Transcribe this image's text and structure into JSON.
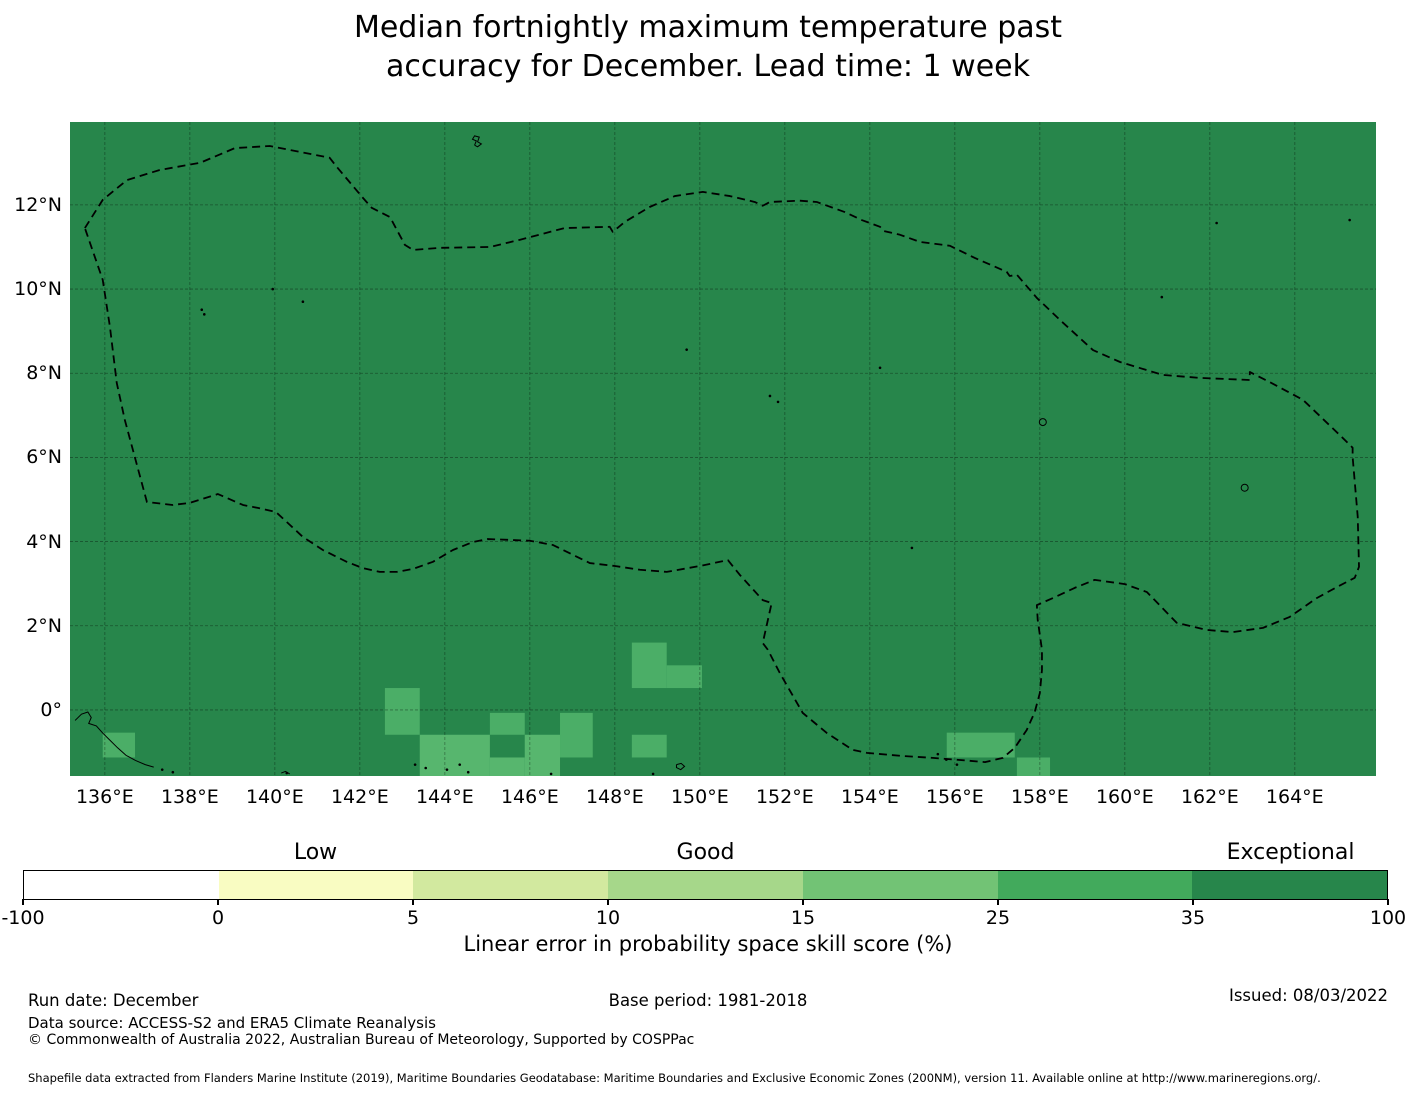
{
  "title": {
    "line1": "Median fortnightly maximum temperature past",
    "line2": "accuracy for December. Lead time: 1 week"
  },
  "map": {
    "type": "skill-score-choropleth",
    "base_color": "#27864b",
    "grid_color": "rgba(0,0,0,0.38)",
    "boundary_color": "#000000",
    "extent": {
      "lon_min": 135.18,
      "lon_max": 165.91,
      "lat_min": -1.57,
      "lat_max": 13.97
    },
    "lat_ticks": [
      {
        "value": 12,
        "label": "12°N"
      },
      {
        "value": 10,
        "label": "10°N"
      },
      {
        "value": 8,
        "label": "8°N"
      },
      {
        "value": 6,
        "label": "6°N"
      },
      {
        "value": 4,
        "label": "4°N"
      },
      {
        "value": 2,
        "label": "2°N"
      },
      {
        "value": 0,
        "label": "0°"
      }
    ],
    "lon_ticks": [
      {
        "value": 136,
        "label": "136°E"
      },
      {
        "value": 138,
        "label": "138°E"
      },
      {
        "value": 140,
        "label": "140°E"
      },
      {
        "value": 142,
        "label": "142°E"
      },
      {
        "value": 144,
        "label": "144°E"
      },
      {
        "value": 146,
        "label": "146°E"
      },
      {
        "value": 148,
        "label": "148°E"
      },
      {
        "value": 150,
        "label": "150°E"
      },
      {
        "value": 152,
        "label": "152°E"
      },
      {
        "value": 154,
        "label": "154°E"
      },
      {
        "value": 156,
        "label": "156°E"
      },
      {
        "value": 158,
        "label": "158°E"
      },
      {
        "value": 160,
        "label": "160°E"
      },
      {
        "value": 162,
        "label": "162°E"
      },
      {
        "value": 164,
        "label": "164°E"
      }
    ],
    "eez_boundary": [
      [
        135.53,
        11.45
      ],
      [
        135.95,
        12.12
      ],
      [
        136.52,
        12.59
      ],
      [
        137.29,
        12.83
      ],
      [
        138.24,
        13.0
      ],
      [
        139.06,
        13.35
      ],
      [
        139.88,
        13.4
      ],
      [
        141.29,
        13.12
      ],
      [
        141.46,
        12.9
      ],
      [
        142.07,
        12.17
      ],
      [
        142.28,
        11.93
      ],
      [
        142.71,
        11.71
      ],
      [
        143.06,
        11.05
      ],
      [
        143.25,
        10.93
      ],
      [
        143.88,
        10.98
      ],
      [
        145.06,
        11.0
      ],
      [
        145.76,
        11.17
      ],
      [
        146.82,
        11.45
      ],
      [
        147.88,
        11.48
      ],
      [
        147.95,
        11.36
      ],
      [
        148.24,
        11.6
      ],
      [
        148.82,
        11.95
      ],
      [
        149.41,
        12.21
      ],
      [
        150.07,
        12.31
      ],
      [
        150.71,
        12.21
      ],
      [
        151.29,
        12.07
      ],
      [
        151.48,
        11.98
      ],
      [
        151.65,
        12.07
      ],
      [
        152.35,
        12.1
      ],
      [
        152.75,
        12.07
      ],
      [
        153.41,
        11.83
      ],
      [
        153.81,
        11.64
      ],
      [
        154.24,
        11.48
      ],
      [
        154.33,
        11.38
      ],
      [
        154.71,
        11.29
      ],
      [
        155.18,
        11.12
      ],
      [
        155.88,
        11.03
      ],
      [
        156.47,
        10.74
      ],
      [
        157.22,
        10.41
      ],
      [
        157.29,
        10.31
      ],
      [
        157.46,
        10.34
      ],
      [
        157.93,
        9.79
      ],
      [
        158.47,
        9.27
      ],
      [
        159.25,
        8.55
      ],
      [
        159.88,
        8.27
      ],
      [
        160.89,
        7.96
      ],
      [
        161.76,
        7.89
      ],
      [
        162.94,
        7.84
      ],
      [
        162.94,
        8.03
      ],
      [
        163.41,
        7.79
      ],
      [
        164.19,
        7.37
      ],
      [
        165.13,
        6.46
      ],
      [
        165.36,
        6.23
      ],
      [
        165.36,
        6.01
      ],
      [
        165.48,
        4.59
      ],
      [
        165.51,
        3.4
      ],
      [
        165.41,
        3.14
      ],
      [
        164.99,
        2.92
      ],
      [
        164.52,
        2.66
      ],
      [
        163.88,
        2.21
      ],
      [
        163.25,
        1.95
      ],
      [
        162.54,
        1.85
      ],
      [
        161.93,
        1.9
      ],
      [
        161.22,
        2.07
      ],
      [
        160.52,
        2.8
      ],
      [
        160.0,
        2.99
      ],
      [
        159.29,
        3.09
      ],
      [
        158.82,
        2.9
      ],
      [
        158.31,
        2.66
      ],
      [
        157.93,
        2.49
      ],
      [
        157.95,
        2.14
      ],
      [
        158.05,
        1.43
      ],
      [
        158.05,
        0.95
      ],
      [
        158.0,
        0.4
      ],
      [
        157.88,
        -0.05
      ],
      [
        157.69,
        -0.48
      ],
      [
        157.41,
        -0.9
      ],
      [
        157.13,
        -1.14
      ],
      [
        156.71,
        -1.24
      ],
      [
        156.12,
        -1.19
      ],
      [
        155.48,
        -1.14
      ],
      [
        154.71,
        -1.09
      ],
      [
        153.93,
        -1.02
      ],
      [
        153.6,
        -0.95
      ],
      [
        152.99,
        -0.55
      ],
      [
        152.42,
        -0.07
      ],
      [
        151.88,
        0.88
      ],
      [
        151.6,
        1.43
      ],
      [
        151.48,
        1.59
      ],
      [
        151.69,
        2.54
      ],
      [
        151.48,
        2.61
      ],
      [
        150.94,
        3.21
      ],
      [
        150.66,
        3.56
      ],
      [
        150.0,
        3.42
      ],
      [
        149.22,
        3.28
      ],
      [
        148.59,
        3.33
      ],
      [
        148.0,
        3.42
      ],
      [
        147.41,
        3.49
      ],
      [
        146.54,
        3.92
      ],
      [
        146.0,
        4.02
      ],
      [
        145.53,
        4.04
      ],
      [
        145.01,
        4.06
      ],
      [
        144.66,
        3.99
      ],
      [
        144.19,
        3.8
      ],
      [
        143.72,
        3.52
      ],
      [
        143.25,
        3.35
      ],
      [
        142.87,
        3.28
      ],
      [
        142.47,
        3.28
      ],
      [
        142.07,
        3.37
      ],
      [
        141.69,
        3.52
      ],
      [
        141.13,
        3.8
      ],
      [
        140.66,
        4.11
      ],
      [
        140.35,
        4.4
      ],
      [
        140.05,
        4.68
      ],
      [
        140.0,
        4.71
      ],
      [
        139.6,
        4.8
      ],
      [
        139.25,
        4.87
      ],
      [
        138.66,
        5.13
      ],
      [
        138.0,
        4.92
      ],
      [
        137.6,
        4.87
      ],
      [
        136.99,
        4.94
      ],
      [
        136.47,
        6.89
      ],
      [
        136.28,
        7.77
      ],
      [
        136.12,
        9.1
      ],
      [
        135.95,
        10.22
      ]
    ],
    "highlight_cells": [
      {
        "lon": [
          142.59,
          143.41
        ],
        "lat": [
          -0.59,
          0.52
        ],
        "color": "#4bae67"
      },
      {
        "lon": [
          143.41,
          145.06
        ],
        "lat": [
          -1.57,
          -0.59
        ],
        "color": "#57b66e"
      },
      {
        "lon": [
          145.06,
          145.88
        ],
        "lat": [
          -0.59,
          -0.07
        ],
        "color": "#4bae67"
      },
      {
        "lon": [
          145.06,
          145.88
        ],
        "lat": [
          -1.57,
          -1.13
        ],
        "color": "#57b66e"
      },
      {
        "lon": [
          145.88,
          146.71
        ],
        "lat": [
          -1.57,
          -0.59
        ],
        "color": "#57b66e"
      },
      {
        "lon": [
          146.71,
          147.48
        ],
        "lat": [
          -1.13,
          -0.07
        ],
        "color": "#4bae67"
      },
      {
        "lon": [
          148.4,
          149.22
        ],
        "lat": [
          0.52,
          1.6
        ],
        "color": "#4bae67"
      },
      {
        "lon": [
          149.22,
          150.05
        ],
        "lat": [
          0.52,
          1.06
        ],
        "color": "#4bae67"
      },
      {
        "lon": [
          148.4,
          149.22
        ],
        "lat": [
          -1.13,
          -0.59
        ],
        "color": "#4bae67"
      },
      {
        "lon": [
          155.81,
          157.41
        ],
        "lat": [
          -1.13,
          -0.54
        ],
        "color": "#4bae67"
      },
      {
        "lon": [
          157.46,
          158.24
        ],
        "lat": [
          -1.57,
          -1.13
        ],
        "color": "#4bae67"
      },
      {
        "lon": [
          135.95,
          136.71
        ],
        "lat": [
          -1.13,
          -0.54
        ],
        "color": "#4bae67"
      }
    ],
    "islands": {
      "dots": [
        [
          138.28,
          9.51
        ],
        [
          138.34,
          9.4
        ],
        [
          139.95,
          10.0
        ],
        [
          140.66,
          9.7
        ],
        [
          149.69,
          8.56
        ],
        [
          151.65,
          7.46
        ],
        [
          151.84,
          7.32
        ],
        [
          154.24,
          8.13
        ],
        [
          154.99,
          3.85
        ],
        [
          160.87,
          9.81
        ],
        [
          162.16,
          11.57
        ],
        [
          165.29,
          11.64
        ],
        [
          143.3,
          -1.3
        ],
        [
          143.55,
          -1.38
        ],
        [
          144.05,
          -1.42
        ],
        [
          144.35,
          -1.3
        ],
        [
          144.55,
          -1.48
        ],
        [
          137.35,
          -1.42
        ],
        [
          137.6,
          -1.48
        ],
        [
          140.28,
          -1.5
        ],
        [
          146.5,
          -1.52
        ],
        [
          155.6,
          -1.05
        ],
        [
          155.8,
          -1.18
        ],
        [
          156.05,
          -1.3
        ],
        [
          148.9,
          -1.52
        ]
      ],
      "rings": [
        [
          158.07,
          6.84
        ],
        [
          162.82,
          5.28
        ]
      ],
      "coast_paths": [
        [
          [
            135.3,
            -0.25
          ],
          [
            135.45,
            -0.1
          ],
          [
            135.6,
            -0.05
          ],
          [
            135.68,
            -0.18
          ],
          [
            135.62,
            -0.32
          ],
          [
            135.8,
            -0.38
          ],
          [
            135.95,
            -0.55
          ],
          [
            136.1,
            -0.7
          ],
          [
            136.3,
            -0.9
          ],
          [
            136.5,
            -1.08
          ],
          [
            136.72,
            -1.2
          ],
          [
            136.95,
            -1.3
          ],
          [
            137.15,
            -1.36
          ]
        ],
        [
          [
            144.7,
            13.42
          ],
          [
            144.74,
            13.52
          ],
          [
            144.65,
            13.56
          ],
          [
            144.7,
            13.64
          ],
          [
            144.81,
            13.61
          ],
          [
            144.77,
            13.5
          ],
          [
            144.86,
            13.45
          ],
          [
            144.77,
            13.38
          ],
          [
            144.7,
            13.42
          ]
        ],
        [
          [
            149.45,
            -1.3
          ],
          [
            149.56,
            -1.27
          ],
          [
            149.64,
            -1.34
          ],
          [
            149.55,
            -1.42
          ],
          [
            149.45,
            -1.37
          ],
          [
            149.45,
            -1.3
          ]
        ],
        [
          [
            140.15,
            -1.5
          ],
          [
            140.25,
            -1.46
          ],
          [
            140.35,
            -1.52
          ]
        ]
      ]
    }
  },
  "colorbar": {
    "segments": [
      {
        "from": -100,
        "to": 0,
        "color": "#ffffff"
      },
      {
        "from": 0,
        "to": 5,
        "color": "#f9fcc2"
      },
      {
        "from": 5,
        "to": 10,
        "color": "#d2e99f"
      },
      {
        "from": 10,
        "to": 15,
        "color": "#a6d78a"
      },
      {
        "from": 15,
        "to": 25,
        "color": "#72c375"
      },
      {
        "from": 25,
        "to": 35,
        "color": "#42aa5c"
      },
      {
        "from": 35,
        "to": 100,
        "color": "#27864b"
      }
    ],
    "tick_labels": [
      "-100",
      "0",
      "5",
      "10",
      "15",
      "25",
      "35",
      "100"
    ],
    "category_labels": [
      {
        "label": "Low",
        "segment": 1
      },
      {
        "label": "Good",
        "segment": 3
      },
      {
        "label": "Exceptional",
        "segment": 6
      }
    ],
    "axis_label": "Linear error in probability space skill score (%)"
  },
  "footer": {
    "run_date": "Run date: December",
    "base_period": "Base period: 1981-2018",
    "issued": "Issued: 08/03/2022",
    "data_source": "Data source: ACCESS-S2 and ERA5 Climate Reanalysis",
    "copyright": "© Commonwealth of Australia 2022, Australian Bureau of Meteorology, Supported by COSPPac",
    "shapefile_note": "Shapefile data extracted from Flanders Marine Institute (2019), Maritime Boundaries Geodatabase: Maritime Boundaries and Exclusive Economic Zones (200NM), version 11. Available online at http://www.marineregions.org/."
  }
}
